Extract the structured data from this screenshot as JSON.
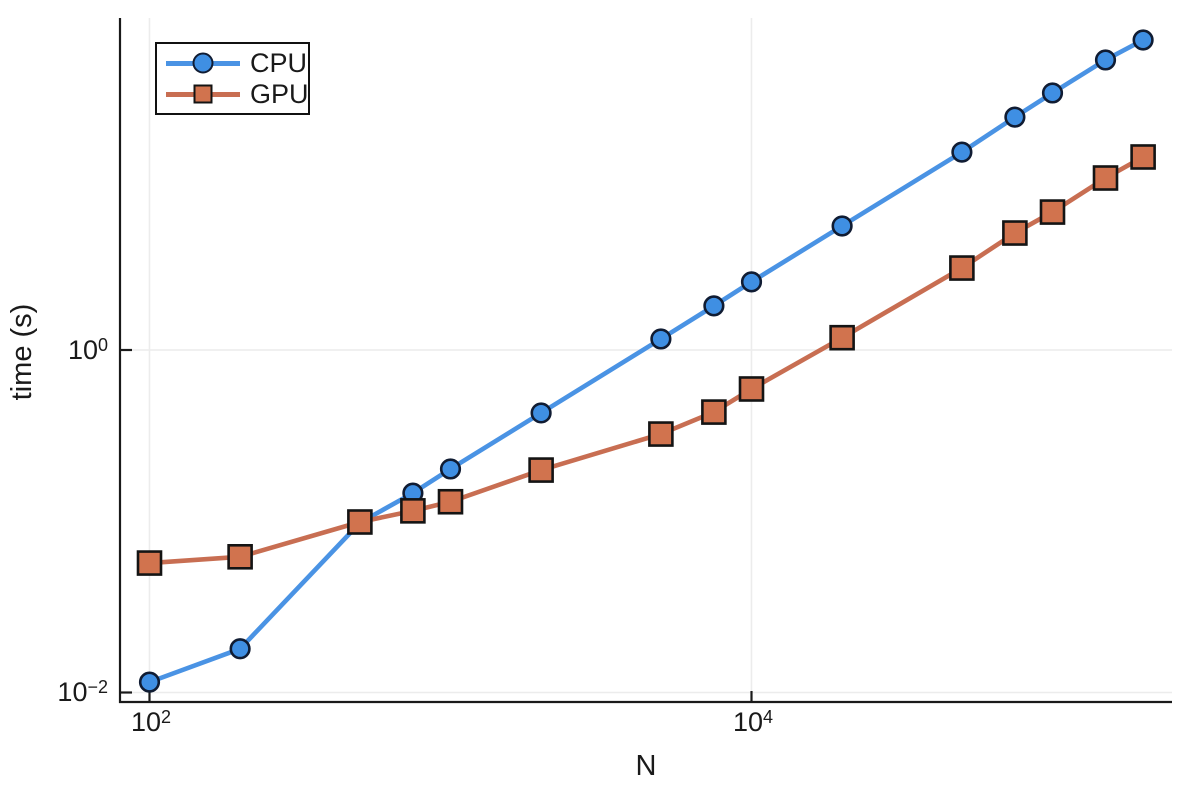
{
  "chart_data": {
    "type": "line",
    "title": "",
    "xlabel": "N",
    "ylabel": "time (s)",
    "x_scale": "log",
    "y_scale": "log",
    "xlim": [
      80,
      250000
    ],
    "ylim": [
      0.0088,
      87
    ],
    "grid": true,
    "legend_position": "top-left",
    "background": "#FFFFFF",
    "grid_color": "#ECECEC",
    "axis_color": "#1A1A1A",
    "x_ticks": [
      {
        "base": "10",
        "exp": "2",
        "value": 100
      },
      {
        "base": "10",
        "exp": "4",
        "value": 10000
      }
    ],
    "y_ticks": [
      {
        "base": "10",
        "exp": "0",
        "value": 1
      },
      {
        "base": "10",
        "exp": "−2",
        "value": 0.01
      }
    ],
    "x": [
      100,
      200,
      500,
      750,
      1000,
      2000,
      5000,
      7500,
      10000,
      20000,
      50000,
      75000,
      100000,
      150000,
      200000
    ],
    "series": [
      {
        "name": "CPU",
        "marker": "circle",
        "color": "#4A93E4",
        "marker_fill": "#3F8FE3",
        "marker_stroke": "#101C33",
        "values": [
          0.0115,
          0.018,
          0.098,
          0.146,
          0.202,
          0.429,
          1.16,
          1.81,
          2.5,
          5.3,
          14.3,
          22.9,
          31.7,
          49.4,
          64.6
        ]
      },
      {
        "name": "GPU",
        "marker": "square",
        "color": "#C86E52",
        "marker_fill": "#D1734E",
        "marker_stroke": "#141414",
        "values": [
          0.057,
          0.062,
          0.099,
          0.115,
          0.13,
          0.199,
          0.323,
          0.434,
          0.592,
          1.18,
          3.01,
          4.82,
          6.39,
          10.1,
          13.4
        ]
      }
    ]
  }
}
